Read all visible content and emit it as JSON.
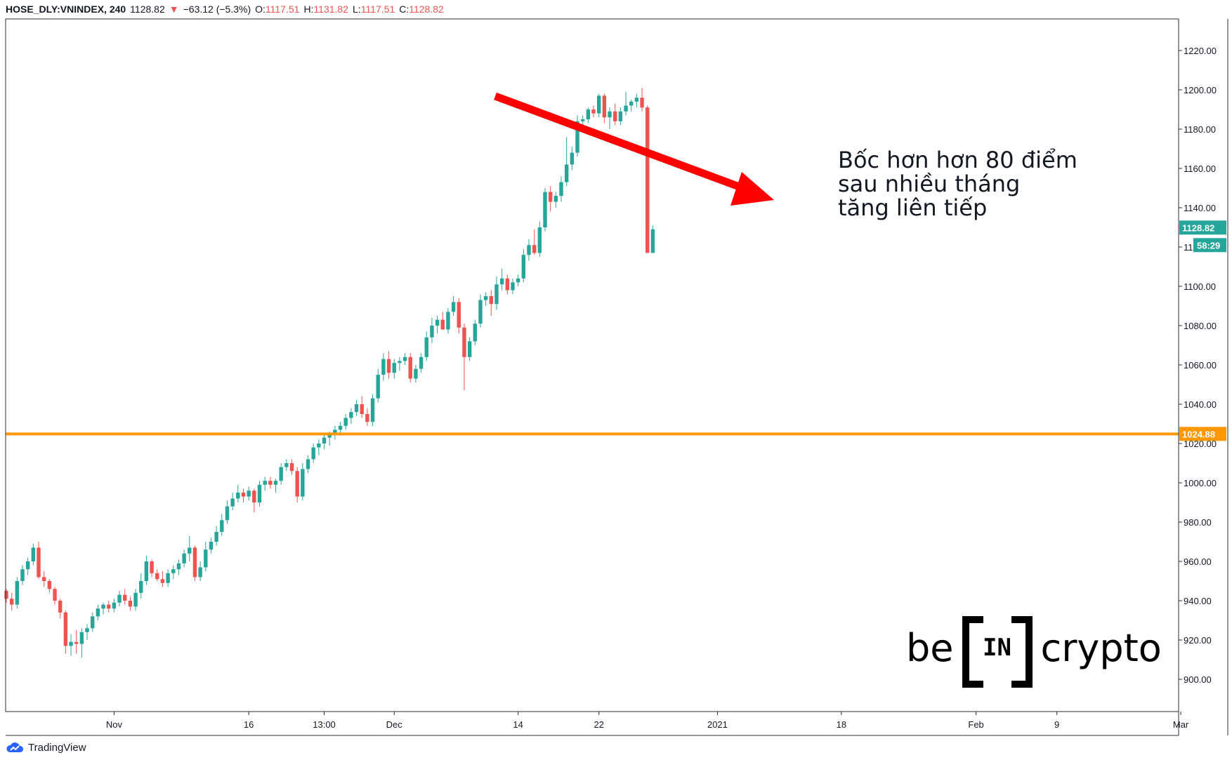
{
  "header": {
    "symbol": "HOSE_DLY:VNINDEX, 240",
    "last": "1128.82",
    "change": "−63.12 (−5.3%)",
    "o_label": "O:",
    "o_value": "1117.51",
    "h_label": "H:",
    "h_value": "1131.82",
    "l_label": "L:",
    "l_value": "1117.51",
    "c_label": "C:",
    "c_value": "1128.82"
  },
  "annotation": {
    "line1": "Bốc hơn hơn 80 điểm",
    "line2": "sau nhiều tháng",
    "line3": "tăng liên tiếp"
  },
  "watermark": {
    "left": "be",
    "middle": "IN",
    "right": "crypto"
  },
  "footer": {
    "brand": "TradingView"
  },
  "colors": {
    "up": "#26a69a",
    "down": "#ef5350",
    "support": "#ff9800",
    "arrow": "#ff0000"
  },
  "chart_data": {
    "type": "candlestick",
    "ylim": [
      880,
      1230
    ],
    "y_ticks": [
      "900.00",
      "920.00",
      "940.00",
      "960.00",
      "980.00",
      "1000.00",
      "1020.00",
      "1040.00",
      "1060.00",
      "1080.00",
      "1100.00",
      "1120.00",
      "1140.00",
      "1160.00",
      "1180.00",
      "1200.00",
      "1220.00"
    ],
    "x_ticks": [
      {
        "label": "Nov",
        "index": 20
      },
      {
        "label": "16",
        "index": 45
      },
      {
        "label": "13:00",
        "index": 59
      },
      {
        "label": "Dec",
        "index": 72
      },
      {
        "label": "14",
        "index": 95
      },
      {
        "label": "22",
        "index": 110
      },
      {
        "label": "2021",
        "index": 132
      },
      {
        "label": "18",
        "index": 155
      },
      {
        "label": "Feb",
        "index": 180
      },
      {
        "label": "9",
        "index": 195
      },
      {
        "label": "Mar",
        "index": 218
      }
    ],
    "horizontal_line": {
      "value": 1024.88,
      "label": "1024.88"
    },
    "last_price_label": "1128.82",
    "countdown_label": "58:29",
    "candles": [
      [
        945,
        946,
        939,
        941
      ],
      [
        941,
        944,
        935,
        938
      ],
      [
        938,
        952,
        936,
        950
      ],
      [
        950,
        958,
        948,
        956
      ],
      [
        956,
        962,
        953,
        960
      ],
      [
        960,
        969,
        958,
        967
      ],
      [
        967,
        970,
        951,
        952
      ],
      [
        952,
        955,
        947,
        950
      ],
      [
        950,
        951,
        944,
        946
      ],
      [
        946,
        947,
        938,
        940
      ],
      [
        940,
        941,
        931,
        934
      ],
      [
        934,
        935,
        913,
        917
      ],
      [
        917,
        923,
        912,
        919
      ],
      [
        919,
        925,
        913,
        918
      ],
      [
        918,
        926,
        911,
        924
      ],
      [
        924,
        928,
        920,
        926
      ],
      [
        926,
        934,
        924,
        932
      ],
      [
        932,
        938,
        930,
        936
      ],
      [
        936,
        939,
        933,
        938
      ],
      [
        938,
        940,
        934,
        936
      ],
      [
        936,
        941,
        934,
        939
      ],
      [
        939,
        945,
        937,
        943
      ],
      [
        943,
        946,
        938,
        940
      ],
      [
        940,
        942,
        935,
        937
      ],
      [
        937,
        946,
        935,
        944
      ],
      [
        944,
        954,
        941,
        950
      ],
      [
        950,
        963,
        948,
        960
      ],
      [
        960,
        961,
        952,
        954
      ],
      [
        954,
        956,
        950,
        951
      ],
      [
        951,
        955,
        947,
        949
      ],
      [
        949,
        956,
        947,
        954
      ],
      [
        954,
        958,
        951,
        956
      ],
      [
        956,
        961,
        953,
        959
      ],
      [
        959,
        966,
        957,
        964
      ],
      [
        964,
        973,
        960,
        967
      ],
      [
        967,
        968,
        950,
        952
      ],
      [
        952,
        960,
        950,
        957
      ],
      [
        957,
        970,
        955,
        966
      ],
      [
        966,
        972,
        964,
        970
      ],
      [
        970,
        978,
        968,
        975
      ],
      [
        975,
        984,
        973,
        981
      ],
      [
        981,
        991,
        979,
        988
      ],
      [
        988,
        995,
        986,
        992
      ],
      [
        992,
        999,
        990,
        995
      ],
      [
        995,
        997,
        990,
        993
      ],
      [
        993,
        998,
        991,
        996
      ],
      [
        996,
        997,
        985,
        990
      ],
      [
        990,
        1001,
        988,
        999
      ],
      [
        999,
        1003,
        996,
        1001
      ],
      [
        1001,
        1003,
        997,
        999
      ],
      [
        999,
        1002,
        995,
        1001
      ],
      [
        1001,
        1010,
        999,
        1008
      ],
      [
        1008,
        1012,
        1006,
        1010
      ],
      [
        1010,
        1012,
        1004,
        1006
      ],
      [
        1006,
        1008,
        990,
        993
      ],
      [
        993,
        1010,
        991,
        1007
      ],
      [
        1007,
        1014,
        1005,
        1012
      ],
      [
        1012,
        1020,
        1010,
        1018
      ],
      [
        1018,
        1022,
        1014,
        1020
      ],
      [
        1020,
        1025,
        1017,
        1023
      ],
      [
        1023,
        1026,
        1019,
        1025
      ],
      [
        1025,
        1029,
        1022,
        1027
      ],
      [
        1027,
        1031,
        1024,
        1029
      ],
      [
        1029,
        1035,
        1027,
        1033
      ],
      [
        1033,
        1038,
        1030,
        1036
      ],
      [
        1036,
        1042,
        1034,
        1040
      ],
      [
        1040,
        1044,
        1033,
        1035
      ],
      [
        1035,
        1038,
        1029,
        1031
      ],
      [
        1031,
        1045,
        1029,
        1043
      ],
      [
        1043,
        1058,
        1041,
        1055
      ],
      [
        1055,
        1066,
        1052,
        1063
      ],
      [
        1063,
        1067,
        1053,
        1056
      ],
      [
        1056,
        1063,
        1053,
        1061
      ],
      [
        1061,
        1064,
        1057,
        1062
      ],
      [
        1062,
        1066,
        1060,
        1064
      ],
      [
        1064,
        1066,
        1051,
        1053
      ],
      [
        1053,
        1060,
        1051,
        1058
      ],
      [
        1058,
        1066,
        1056,
        1064
      ],
      [
        1064,
        1077,
        1062,
        1074
      ],
      [
        1074,
        1084,
        1071,
        1080
      ],
      [
        1080,
        1085,
        1076,
        1083
      ],
      [
        1083,
        1087,
        1079,
        1078
      ],
      [
        1078,
        1089,
        1076,
        1087
      ],
      [
        1087,
        1095,
        1085,
        1092
      ],
      [
        1092,
        1094,
        1076,
        1079
      ],
      [
        1079,
        1081,
        1047,
        1064
      ],
      [
        1064,
        1074,
        1062,
        1072
      ],
      [
        1072,
        1083,
        1070,
        1081
      ],
      [
        1081,
        1096,
        1079,
        1093
      ],
      [
        1093,
        1097,
        1090,
        1095
      ],
      [
        1095,
        1098,
        1085,
        1091
      ],
      [
        1091,
        1105,
        1088,
        1101
      ],
      [
        1101,
        1109,
        1098,
        1104
      ],
      [
        1104,
        1106,
        1096,
        1098
      ],
      [
        1098,
        1104,
        1096,
        1102
      ],
      [
        1102,
        1106,
        1100,
        1104
      ],
      [
        1104,
        1119,
        1102,
        1116
      ],
      [
        1116,
        1124,
        1113,
        1121
      ],
      [
        1121,
        1129,
        1116,
        1117
      ],
      [
        1117,
        1133,
        1115,
        1130
      ],
      [
        1130,
        1150,
        1128,
        1148
      ],
      [
        1148,
        1151,
        1138,
        1143
      ],
      [
        1143,
        1148,
        1140,
        1146
      ],
      [
        1146,
        1156,
        1143,
        1153
      ],
      [
        1153,
        1176,
        1151,
        1162
      ],
      [
        1162,
        1171,
        1159,
        1168
      ],
      [
        1168,
        1187,
        1166,
        1184
      ],
      [
        1184,
        1187,
        1180,
        1185
      ],
      [
        1185,
        1191,
        1183,
        1190
      ],
      [
        1190,
        1192,
        1186,
        1188
      ],
      [
        1188,
        1198,
        1186,
        1197
      ],
      [
        1197,
        1198,
        1183,
        1186
      ],
      [
        1186,
        1191,
        1180,
        1189
      ],
      [
        1189,
        1193,
        1182,
        1184
      ],
      [
        1184,
        1191,
        1182,
        1189
      ],
      [
        1189,
        1199,
        1187,
        1192
      ],
      [
        1192,
        1195,
        1189,
        1194
      ],
      [
        1194,
        1198,
        1191,
        1196
      ],
      [
        1196,
        1201,
        1189,
        1191
      ],
      [
        1191,
        1192,
        1117,
        1117
      ],
      [
        1117,
        1131,
        1117,
        1129
      ]
    ]
  }
}
